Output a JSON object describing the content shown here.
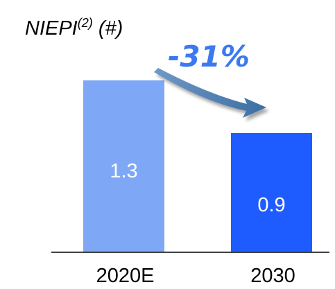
{
  "chart_data": {
    "type": "bar",
    "title": "NIEPI",
    "title_superscript": "(2)",
    "title_suffix": "(#)",
    "categories": [
      "2020E",
      "2030"
    ],
    "values": [
      1.3,
      0.9
    ],
    "value_labels": [
      "1.3",
      "0.9"
    ],
    "bar_colors": [
      "#7EA8F6",
      "#1F5CFF"
    ],
    "annotation": "-31%",
    "annotation_color": "#3A79F0",
    "arrow_color": "#4F7FB0",
    "xlabel": "",
    "ylabel": "",
    "grid": false
  }
}
